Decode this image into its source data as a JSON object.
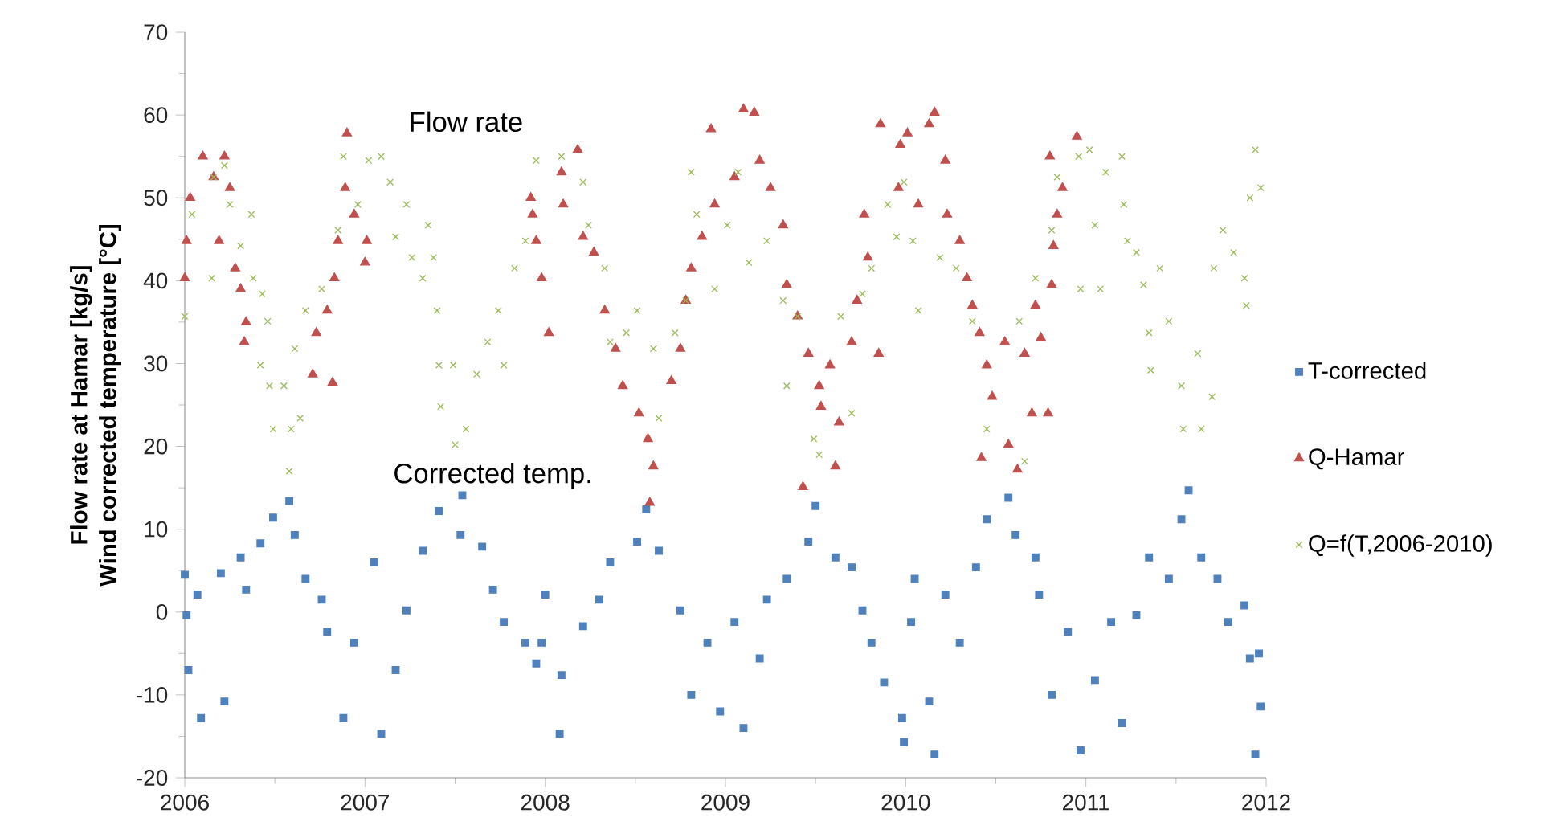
{
  "chart_data": {
    "type": "scatter",
    "ylabel": [
      "Flow rate at Hamar [kg/s]",
      "Wind corrected temperature [°C]"
    ],
    "xlim": [
      2006,
      2012
    ],
    "xticks": [
      2006,
      2007,
      2008,
      2009,
      2010,
      2011,
      2012
    ],
    "ylim": [
      -20,
      70
    ],
    "yticks": [
      -20,
      -10,
      0,
      10,
      20,
      30,
      40,
      50,
      60,
      70
    ],
    "legend": "right",
    "annotations": [
      "Flow rate",
      "Corrected temp."
    ],
    "series": [
      {
        "name": "T-corrected",
        "color": "#4f81bd",
        "marker": "square",
        "x": [
          2006.0,
          2006.01,
          2006.02,
          2006.09,
          2006.07,
          2006.2,
          2006.22,
          2006.31,
          2006.34,
          2006.42,
          2006.49,
          2006.58,
          2006.61,
          2006.67,
          2006.76,
          2006.79,
          2006.88,
          2006.94,
          2007.05,
          2007.09,
          2007.17,
          2007.23,
          2007.32,
          2007.41,
          2007.54,
          2007.53,
          2007.65,
          2007.71,
          2007.77,
          2007.89,
          2007.95,
          2008.0,
          2007.98,
          2008.08,
          2008.09,
          2008.21,
          2008.3,
          2008.36,
          2008.51,
          2008.56,
          2008.63,
          2008.75,
          2008.81,
          2008.9,
          2008.97,
          2009.05,
          2009.1,
          2009.19,
          2009.23,
          2009.34,
          2009.46,
          2009.5,
          2009.61,
          2009.7,
          2009.76,
          2009.81,
          2009.88,
          2009.99,
          2010.03,
          2009.98,
          2010.05,
          2010.16,
          2010.13,
          2010.22,
          2010.3,
          2010.39,
          2010.45,
          2010.57,
          2010.61,
          2010.72,
          2010.74,
          2010.81,
          2010.9,
          2010.97,
          2011.05,
          2011.14,
          2011.2,
          2011.28,
          2011.35,
          2011.46,
          2011.53,
          2011.57,
          2011.64,
          2011.73,
          2011.79,
          2011.88,
          2011.91,
          2011.94,
          2011.97,
          2011.96
        ],
        "values": [
          4.5,
          -0.4,
          -7,
          -12.8,
          2.1,
          4.7,
          -10.8,
          6.6,
          2.7,
          8.3,
          11.4,
          13.4,
          9.3,
          4,
          1.5,
          -2.4,
          -12.8,
          -3.7,
          6,
          -14.7,
          -7,
          0.2,
          7.4,
          12.2,
          14.1,
          9.3,
          7.9,
          2.7,
          -1.2,
          -3.7,
          -6.2,
          2.1,
          -3.7,
          -14.7,
          -7.6,
          -1.7,
          1.5,
          6,
          8.5,
          12.4,
          7.4,
          0.2,
          -10,
          -3.7,
          -12,
          -1.2,
          -14,
          -5.6,
          1.5,
          4,
          8.5,
          12.8,
          6.6,
          5.4,
          0.2,
          -3.7,
          -8.5,
          -15.7,
          -1.2,
          -12.8,
          4,
          -17.2,
          -10.8,
          2.1,
          -3.7,
          5.4,
          11.2,
          13.8,
          9.3,
          6.6,
          2.1,
          -10,
          -2.4,
          -16.7,
          -8.2,
          -1.2,
          -13.4,
          -0.4,
          6.6,
          4,
          11.2,
          14.7,
          6.6,
          4,
          -1.2,
          0.8,
          -5.6,
          -17.2,
          -11.4,
          -5
        ]
      },
      {
        "name": "Q-Hamar",
        "color": "#c0504d",
        "marker": "triangle",
        "x": [
          2006.0,
          2006.01,
          2006.03,
          2006.1,
          2006.16,
          2006.22,
          2006.19,
          2006.25,
          2006.28,
          2006.31,
          2006.34,
          2006.33,
          2006.71,
          2006.73,
          2006.79,
          2006.82,
          2006.83,
          2006.85,
          2006.89,
          2006.9,
          2006.94,
          2007.0,
          2007.01,
          2007.92,
          2007.95,
          2007.98,
          2008.02,
          2007.93,
          2008.09,
          2008.1,
          2008.18,
          2008.21,
          2008.27,
          2008.33,
          2008.39,
          2008.43,
          2008.52,
          2008.57,
          2008.6,
          2008.58,
          2008.7,
          2008.75,
          2008.78,
          2008.81,
          2008.87,
          2008.92,
          2008.94,
          2009.05,
          2009.1,
          2009.16,
          2009.19,
          2009.25,
          2009.32,
          2009.34,
          2009.4,
          2009.43,
          2009.46,
          2009.52,
          2009.53,
          2009.58,
          2009.63,
          2009.61,
          2009.7,
          2009.73,
          2009.79,
          2009.77,
          2009.85,
          2009.86,
          2009.97,
          2009.96,
          2010.01,
          2010.13,
          2010.16,
          2010.07,
          2010.22,
          2010.23,
          2010.3,
          2010.34,
          2010.37,
          2010.41,
          2010.45,
          2010.48,
          2010.42,
          2010.55,
          2010.57,
          2010.62,
          2010.66,
          2010.7,
          2010.75,
          2010.79,
          2010.72,
          2010.81,
          2010.82,
          2010.84,
          2010.87,
          2010.8,
          2010.95
        ],
        "values": [
          40.3,
          44.8,
          50,
          55,
          52.5,
          55,
          44.8,
          51.2,
          41.5,
          39,
          35,
          32.6,
          28.7,
          33.7,
          36.4,
          27.7,
          40.3,
          44.8,
          51.2,
          57.8,
          48,
          42.2,
          44.8,
          50,
          44.8,
          40.3,
          33.7,
          48,
          53.1,
          49.2,
          55.8,
          45.3,
          43.4,
          36.4,
          31.8,
          27.3,
          24,
          20.9,
          17.6,
          13.2,
          27.9,
          31.8,
          37.6,
          41.5,
          45.3,
          58.3,
          49.2,
          52.5,
          60.7,
          60.3,
          54.5,
          51.2,
          46.7,
          39.5,
          35.7,
          15.1,
          31.2,
          27.3,
          24.8,
          29.8,
          22.9,
          17.6,
          32.6,
          37.6,
          42.8,
          48,
          31.2,
          58.9,
          56.4,
          51.2,
          57.8,
          58.9,
          60.3,
          49.2,
          54.5,
          48,
          44.8,
          40.3,
          37,
          33.7,
          29.8,
          26,
          18.6,
          32.6,
          20.2,
          17.2,
          31.2,
          24,
          33.1,
          24,
          37,
          39.5,
          44.2,
          48,
          51.2,
          55,
          57.4
        ]
      },
      {
        "name": "Q=f(T,2006-2010)",
        "color": "#9bbb59",
        "marker": "cross",
        "x": [
          2006.0,
          2006.04,
          2006.16,
          2006.22,
          2006.15,
          2006.25,
          2006.31,
          2006.37,
          2006.38,
          2006.43,
          2006.46,
          2006.42,
          2006.47,
          2006.49,
          2006.55,
          2006.58,
          2006.59,
          2006.61,
          2006.64,
          2006.67,
          2006.76,
          2006.85,
          2006.88,
          2006.96,
          2007.02,
          2007.09,
          2007.14,
          2007.17,
          2007.23,
          2007.26,
          2007.32,
          2007.35,
          2007.38,
          2007.4,
          2007.41,
          2007.42,
          2007.5,
          2007.49,
          2007.56,
          2007.62,
          2007.68,
          2007.74,
          2007.77,
          2007.83,
          2007.89,
          2007.95,
          2008.09,
          2008.21,
          2008.24,
          2008.33,
          2008.36,
          2008.45,
          2008.51,
          2008.6,
          2008.63,
          2008.72,
          2008.78,
          2008.81,
          2008.84,
          2008.94,
          2009.01,
          2009.07,
          2009.13,
          2009.23,
          2009.32,
          2009.34,
          2009.4,
          2009.49,
          2009.52,
          2009.64,
          2009.7,
          2009.76,
          2009.81,
          2009.9,
          2009.99,
          2009.95,
          2010.07,
          2010.04,
          2010.19,
          2010.28,
          2010.37,
          2010.45,
          2010.63,
          2010.66,
          2010.72,
          2010.81,
          2010.84,
          2010.96,
          2010.97,
          2011.02,
          2011.08,
          2011.05,
          2011.11,
          2011.2,
          2011.21,
          2011.23,
          2011.28,
          2011.32,
          2011.35,
          2011.36,
          2011.41,
          2011.46,
          2011.53,
          2011.54,
          2011.62,
          2011.64,
          2011.7,
          2011.71,
          2011.76,
          2011.82,
          2011.88,
          2011.91,
          2011.94,
          2011.97,
          2011.89
        ],
        "values": [
          35.7,
          48,
          52.5,
          53.9,
          40.3,
          49.2,
          44.2,
          48,
          40.3,
          38.4,
          35.1,
          29.8,
          27.3,
          22.1,
          27.3,
          17,
          22.1,
          31.8,
          23.4,
          36.4,
          39,
          46.1,
          55,
          49.2,
          54.5,
          55,
          51.9,
          45.3,
          49.2,
          42.8,
          40.3,
          46.7,
          42.8,
          36.4,
          29.8,
          24.8,
          20.2,
          29.8,
          22.1,
          28.7,
          32.6,
          36.4,
          29.8,
          41.5,
          44.8,
          54.5,
          55,
          51.9,
          46.7,
          41.5,
          32.6,
          33.7,
          36.4,
          31.8,
          23.4,
          33.7,
          37.6,
          53.1,
          48,
          39,
          46.7,
          53.1,
          42.2,
          44.8,
          37.6,
          27.3,
          35.7,
          20.9,
          19,
          35.7,
          24,
          38.4,
          41.5,
          49.2,
          51.9,
          45.3,
          36.4,
          44.8,
          42.8,
          41.5,
          35.1,
          22.1,
          35.1,
          18.2,
          40.3,
          46.1,
          52.5,
          55,
          39,
          55.8,
          39,
          46.7,
          53.1,
          55,
          49.2,
          44.8,
          43.4,
          39.5,
          33.7,
          29.2,
          41.5,
          35.1,
          27.3,
          22.1,
          31.2,
          22.1,
          26,
          41.5,
          46.1,
          43.4,
          40.3,
          50,
          55.8,
          51.2,
          37
        ]
      }
    ]
  }
}
